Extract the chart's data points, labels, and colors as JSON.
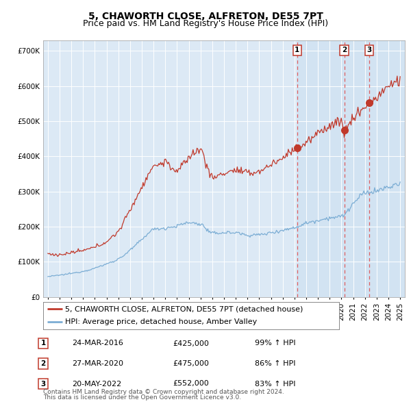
{
  "title": "5, CHAWORTH CLOSE, ALFRETON, DE55 7PT",
  "subtitle": "Price paid vs. HM Land Registry's House Price Index (HPI)",
  "legend_line1": "5, CHAWORTH CLOSE, ALFRETON, DE55 7PT (detached house)",
  "legend_line2": "HPI: Average price, detached house, Amber Valley",
  "footer1": "Contains HM Land Registry data © Crown copyright and database right 2024.",
  "footer2": "This data is licensed under the Open Government Licence v3.0.",
  "sales": [
    {
      "label": "1",
      "date": "24-MAR-2016",
      "price": 425000,
      "pct": "99%",
      "dir": "↑"
    },
    {
      "label": "2",
      "date": "27-MAR-2020",
      "price": 475000,
      "pct": "86%",
      "dir": "↑"
    },
    {
      "label": "3",
      "date": "20-MAY-2022",
      "price": 552000,
      "pct": "83%",
      "dir": "↑"
    }
  ],
  "sale_dates_num": [
    2016.23,
    2020.24,
    2022.38
  ],
  "sale_prices": [
    425000,
    475000,
    552000
  ],
  "vline_dates_num": [
    2016.23,
    2020.24,
    2022.38
  ],
  "ylabel_ticks": [
    "£0",
    "£100K",
    "£200K",
    "£300K",
    "£400K",
    "£500K",
    "£600K",
    "£700K"
  ],
  "ytick_values": [
    0,
    100000,
    200000,
    300000,
    400000,
    500000,
    600000,
    700000
  ],
  "xlim_start": 1994.6,
  "xlim_end": 2025.4,
  "ylim_min": 0,
  "ylim_max": 730000,
  "fig_bg_color": "#ffffff",
  "plot_bg_color": "#dce9f5",
  "red_line_color": "#c0392b",
  "blue_line_color": "#7badd4",
  "vline_color": "#e05050",
  "dot_color": "#c0392b",
  "grid_color": "#ffffff",
  "title_fontsize": 10,
  "subtitle_fontsize": 9,
  "tick_fontsize": 7.5,
  "legend_fontsize": 8,
  "footer_fontsize": 6.5,
  "blue_anchors_years": [
    1995,
    1996,
    1997,
    1998,
    1999,
    2000,
    2001,
    2002,
    2003,
    2004,
    2005,
    2006,
    2007,
    2008,
    2009,
    2010,
    2011,
    2012,
    2013,
    2014,
    2015,
    2016,
    2017,
    2018,
    2019,
    2020,
    2021,
    2022,
    2023,
    2024,
    2025
  ],
  "blue_anchors_vals": [
    58000,
    62000,
    67000,
    73000,
    82000,
    94000,
    108000,
    133000,
    163000,
    192000,
    196000,
    202000,
    211000,
    207000,
    181000,
    183000,
    183000,
    176000,
    177000,
    183000,
    190000,
    197000,
    210000,
    218000,
    225000,
    229000,
    265000,
    295000,
    302000,
    312000,
    322000
  ],
  "red_anchors_years": [
    1995,
    1996,
    1997,
    1998,
    1999,
    2000,
    2001,
    2002,
    2003,
    2004,
    2005,
    2006,
    2007,
    2008,
    2009,
    2010,
    2011,
    2012,
    2013,
    2014,
    2015,
    2016,
    2016.23,
    2017,
    2018,
    2019,
    2020,
    2020.24,
    2021,
    2022,
    2022.38,
    2023,
    2024,
    2025
  ],
  "red_anchors_vals": [
    123000,
    120000,
    126000,
    132000,
    142000,
    158000,
    188000,
    248000,
    312000,
    370000,
    383000,
    358000,
    398000,
    418000,
    340000,
    352000,
    360000,
    352000,
    358000,
    377000,
    395000,
    422000,
    425000,
    438000,
    465000,
    488000,
    498000,
    475000,
    508000,
    542000,
    552000,
    568000,
    598000,
    618000
  ]
}
